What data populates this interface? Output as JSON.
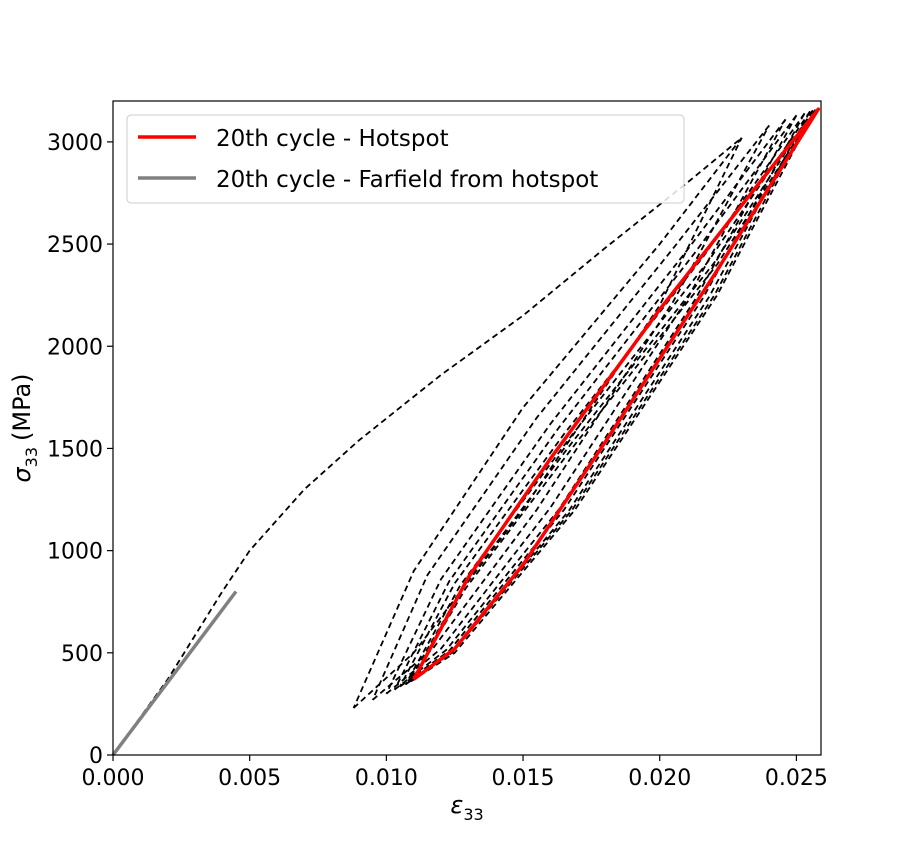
{
  "chart_data": {
    "type": "line",
    "xlabel": "ε",
    "xlabel_sub": "33",
    "ylabel": "σ",
    "ylabel_sub": "33",
    "ylabel_unit": "(MPa)",
    "xlim": [
      0.0,
      0.0259
    ],
    "ylim": [
      0,
      3200
    ],
    "xticks": [
      0.0,
      0.005,
      0.01,
      0.015,
      0.02,
      0.025
    ],
    "xtick_labels": [
      "0.000",
      "0.005",
      "0.010",
      "0.015",
      "0.020",
      "0.025"
    ],
    "yticks": [
      0,
      500,
      1000,
      1500,
      2000,
      2500,
      3000
    ],
    "ytick_labels": [
      "0",
      "500",
      "1000",
      "1500",
      "2000",
      "2500",
      "3000"
    ],
    "legend_position": "top-left",
    "series": [
      {
        "name": "20th cycle - Hotspot",
        "color": "#ff0000",
        "style": "solid",
        "x": [
          0.011,
          0.0125,
          0.015,
          0.018,
          0.022,
          0.0258,
          0.024,
          0.02,
          0.016,
          0.013,
          0.011
        ],
        "y": [
          370,
          520,
          930,
          1530,
          2350,
          3160,
          2860,
          2180,
          1450,
          870,
          370
        ]
      },
      {
        "name": "20th cycle - Farfield from hotspot",
        "color": "#808080",
        "style": "solid",
        "x": [
          0.0,
          0.0045
        ],
        "y": [
          0,
          800
        ]
      }
    ],
    "background_curves": {
      "color": "#000000",
      "style": "dashed",
      "initial_loading": {
        "x": [
          0.0,
          0.002,
          0.004,
          0.005,
          0.007,
          0.009,
          0.012,
          0.015,
          0.018,
          0.021,
          0.023
        ],
        "y": [
          0,
          370,
          800,
          1000,
          1300,
          1540,
          1860,
          2150,
          2480,
          2800,
          3020
        ]
      },
      "cycles": [
        {
          "up_x": [
            0.0088,
            0.011,
            0.015,
            0.02,
            0.023
          ],
          "up_y": [
            230,
            500,
            1200,
            2200,
            3020
          ],
          "down_x": [
            0.023,
            0.02,
            0.015,
            0.011,
            0.0088
          ],
          "down_y": [
            3020,
            2500,
            1700,
            900,
            230
          ]
        },
        {
          "up_x": [
            0.0095,
            0.0117,
            0.0155,
            0.0205,
            0.024
          ],
          "up_y": [
            270,
            520,
            1200,
            2220,
            3080
          ],
          "down_x": [
            0.024,
            0.0205,
            0.0155,
            0.0115,
            0.0095
          ],
          "down_y": [
            3080,
            2480,
            1650,
            880,
            270
          ]
        },
        {
          "up_x": [
            0.01,
            0.012,
            0.016,
            0.021,
            0.0246
          ],
          "up_y": [
            300,
            520,
            1210,
            2230,
            3110
          ],
          "down_x": [
            0.0246,
            0.021,
            0.016,
            0.012,
            0.01
          ],
          "down_y": [
            3110,
            2470,
            1620,
            860,
            300
          ]
        },
        {
          "up_x": [
            0.0103,
            0.0122,
            0.0163,
            0.0213,
            0.025
          ],
          "up_y": [
            320,
            515,
            1200,
            2230,
            3130
          ],
          "down_x": [
            0.025,
            0.0213,
            0.0163,
            0.0123,
            0.0103
          ],
          "down_y": [
            3130,
            2460,
            1600,
            850,
            320
          ]
        },
        {
          "up_x": [
            0.0105,
            0.0123,
            0.0165,
            0.0216,
            0.0253
          ],
          "up_y": [
            335,
            510,
            1200,
            2240,
            3140
          ],
          "down_x": [
            0.0253,
            0.0216,
            0.0165,
            0.0125,
            0.0105
          ],
          "down_y": [
            3140,
            2440,
            1570,
            840,
            335
          ]
        },
        {
          "up_x": [
            0.0107,
            0.0124,
            0.0167,
            0.0218,
            0.0255
          ],
          "up_y": [
            345,
            505,
            1200,
            2240,
            3150
          ],
          "down_x": [
            0.0255,
            0.0218,
            0.0167,
            0.0127,
            0.0107
          ],
          "down_y": [
            3150,
            2420,
            1550,
            830,
            345
          ]
        },
        {
          "up_x": [
            0.0108,
            0.0124,
            0.0168,
            0.022,
            0.0256
          ],
          "up_y": [
            355,
            500,
            1200,
            2250,
            3155
          ],
          "down_x": [
            0.0256,
            0.022,
            0.0168,
            0.0128,
            0.0108
          ],
          "down_y": [
            3155,
            2410,
            1530,
            820,
            355
          ]
        },
        {
          "up_x": [
            0.0109,
            0.0125,
            0.0169,
            0.0221,
            0.0257
          ],
          "up_y": [
            360,
            500,
            1200,
            2250,
            3158
          ],
          "down_x": [
            0.0257,
            0.0221,
            0.0169,
            0.0129,
            0.0109
          ],
          "down_y": [
            3158,
            2400,
            1520,
            815,
            360
          ]
        }
      ]
    }
  }
}
